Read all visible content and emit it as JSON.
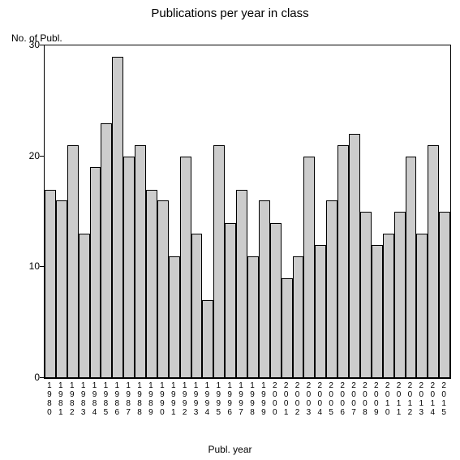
{
  "chart": {
    "type": "bar",
    "title": "Publications per year in class",
    "title_fontsize": 15,
    "y_axis_label": "No. of Publ.",
    "x_axis_label": "Publ. year",
    "label_fontsize": 12,
    "background_color": "#ffffff",
    "bar_color": "#cccccc",
    "bar_border_color": "#000000",
    "axis_color": "#000000",
    "ylim": [
      0,
      30
    ],
    "ytick_step": 10,
    "yticks": [
      0,
      10,
      20,
      30
    ],
    "categories": [
      "1980",
      "1981",
      "1982",
      "1983",
      "1984",
      "1985",
      "1986",
      "1987",
      "1988",
      "1989",
      "1990",
      "1991",
      "1992",
      "1993",
      "1994",
      "1995",
      "1996",
      "1997",
      "1998",
      "1999",
      "2000",
      "2001",
      "2002",
      "2003",
      "2004",
      "2005",
      "2006",
      "2007",
      "2008",
      "2009",
      "2010",
      "2011",
      "2012",
      "2013",
      "2014",
      "2015"
    ],
    "values": [
      17,
      16,
      21,
      13,
      19,
      23,
      29,
      20,
      21,
      17,
      16,
      11,
      20,
      13,
      7,
      21,
      14,
      17,
      11,
      16,
      14,
      9,
      11,
      20,
      12,
      16,
      21,
      22,
      15,
      12,
      13,
      15,
      20,
      13,
      21,
      15
    ],
    "tick_fontsize": 10
  }
}
